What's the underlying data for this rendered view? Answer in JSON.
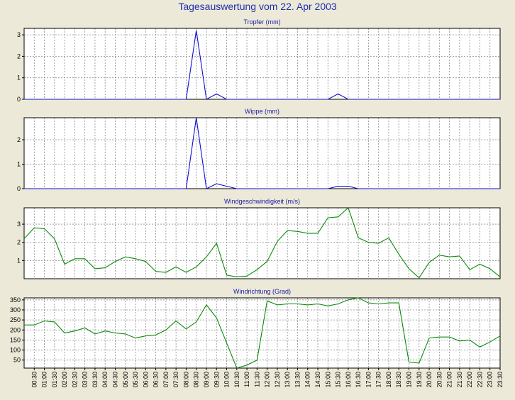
{
  "title": "Tagesauswertung vom 22. Apr 2003",
  "time_labels": [
    "00:30",
    "01:00",
    "01:30",
    "02:00",
    "02:30",
    "03:00",
    "03:30",
    "04:00",
    "04:30",
    "05:00",
    "05:30",
    "06:00",
    "06:30",
    "07:00",
    "07:30",
    "08:00",
    "08:30",
    "09:00",
    "09:30",
    "10:00",
    "10:30",
    "11:00",
    "11:30",
    "12:00",
    "12:30",
    "13:00",
    "13:30",
    "14:00",
    "14:30",
    "15:00",
    "15:30",
    "16:00",
    "16:30",
    "17:00",
    "17:30",
    "18:00",
    "18:30",
    "19:00",
    "19:30",
    "20:00",
    "20:30",
    "21:00",
    "21:30",
    "22:00",
    "22:30",
    "23:00",
    "23:30"
  ],
  "colors": {
    "rain": "#1010d0",
    "wind": "#0a8a0a",
    "grid": "#8c8c8c",
    "plot_bg": "#ffffff",
    "frame": "#000000"
  },
  "chart_data": [
    {
      "type": "line",
      "title": "Tropfer (mm)",
      "ylim": [
        0,
        3.3
      ],
      "yticks": [
        0,
        1,
        2,
        3
      ],
      "series": [
        {
          "values": [
            0,
            0,
            0,
            0,
            0,
            0,
            0,
            0,
            0,
            0,
            0,
            0,
            0,
            0,
            0,
            0,
            0,
            3.2,
            0,
            0.25,
            0,
            0,
            0,
            0,
            0,
            0,
            0,
            0,
            0,
            0,
            0,
            0.25,
            0,
            0,
            0,
            0,
            0,
            0,
            0,
            0,
            0,
            0,
            0,
            0,
            0,
            0,
            0,
            0
          ]
        }
      ]
    },
    {
      "type": "line",
      "title": "Wippe (mm)",
      "ylim": [
        0,
        2.9
      ],
      "yticks": [
        0,
        1,
        2
      ],
      "series": [
        {
          "values": [
            0,
            0,
            0,
            0,
            0,
            0,
            0,
            0,
            0,
            0,
            0,
            0,
            0,
            0,
            0,
            0,
            0,
            2.9,
            0,
            0.2,
            0.1,
            0,
            0,
            0,
            0,
            0,
            0,
            0,
            0,
            0,
            0,
            0.1,
            0.1,
            0,
            0,
            0,
            0,
            0,
            0,
            0,
            0,
            0,
            0,
            0,
            0,
            0,
            0,
            0
          ]
        }
      ]
    },
    {
      "type": "line",
      "title": "Windgeschwindigkeit (m/s)",
      "ylim": [
        0,
        3.9
      ],
      "yticks": [
        1,
        2,
        3
      ],
      "series": [
        {
          "values": [
            2.2,
            2.8,
            2.75,
            2.2,
            0.8,
            1.1,
            1.1,
            0.55,
            0.6,
            0.95,
            1.2,
            1.1,
            0.95,
            0.4,
            0.35,
            0.65,
            0.35,
            0.65,
            1.2,
            1.95,
            0.2,
            0.1,
            0.15,
            0.5,
            0.95,
            2.05,
            2.65,
            2.6,
            2.5,
            2.5,
            3.35,
            3.4,
            3.9,
            2.25,
            2.0,
            1.95,
            2.25,
            1.35,
            0.55,
            0.05,
            0.9,
            1.3,
            1.2,
            1.25,
            0.5,
            0.8,
            0.55,
            0.1
          ]
        }
      ]
    },
    {
      "type": "line",
      "title": "Windrichtung (Grad)",
      "ylim": [
        10,
        360
      ],
      "yticks": [
        50,
        100,
        150,
        200,
        250,
        300,
        350
      ],
      "series": [
        {
          "values": [
            225,
            225,
            245,
            240,
            185,
            195,
            210,
            180,
            195,
            185,
            180,
            160,
            170,
            175,
            200,
            245,
            205,
            240,
            325,
            260,
            135,
            10,
            25,
            50,
            345,
            325,
            330,
            330,
            325,
            330,
            320,
            330,
            350,
            360,
            335,
            330,
            335,
            335,
            40,
            35,
            160,
            165,
            165,
            145,
            150,
            115,
            140,
            170
          ]
        }
      ]
    }
  ]
}
